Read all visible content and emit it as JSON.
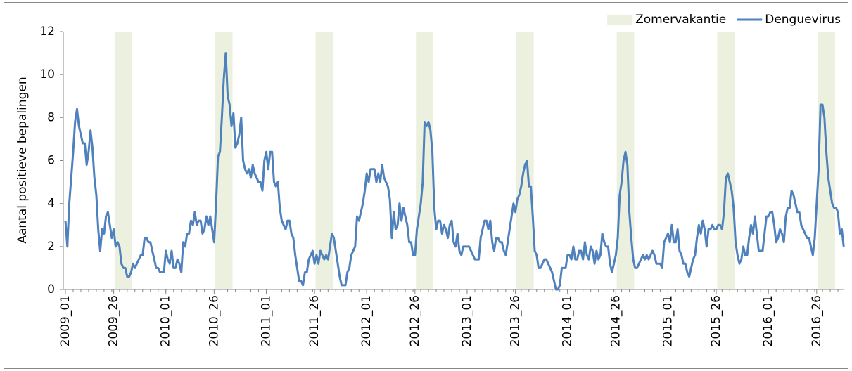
{
  "chart_data": {
    "type": "line",
    "y_label": "Aantal positieve bepalingen",
    "ylim": [
      0,
      12
    ],
    "yticks": [
      0,
      2,
      4,
      6,
      8,
      10,
      12
    ],
    "legend": "top-right",
    "categories": [
      "2009_01",
      null,
      null,
      null,
      null,
      null,
      null,
      null,
      null,
      null,
      null,
      null,
      null,
      null,
      null,
      null,
      null,
      null,
      null,
      null,
      null,
      null,
      null,
      null,
      null,
      "2009_26",
      null,
      null,
      null,
      null,
      null,
      null,
      null,
      null,
      null,
      null,
      null,
      null,
      null,
      null,
      null,
      null,
      null,
      null,
      null,
      null,
      null,
      null,
      null,
      null,
      null,
      null,
      "2010_01",
      null,
      null,
      null,
      null,
      null,
      null,
      null,
      null,
      null,
      null,
      null,
      null,
      null,
      null,
      null,
      null,
      null,
      null,
      null,
      null,
      null,
      null,
      null,
      null,
      "2010_26",
      null,
      null,
      null,
      null,
      null,
      null,
      null,
      null,
      null,
      null,
      null,
      null,
      null,
      null,
      null,
      null,
      null,
      null,
      null,
      null,
      null,
      null,
      null,
      null,
      null,
      null,
      "2011_01",
      null,
      null,
      null,
      null,
      null,
      null,
      null,
      null,
      null,
      null,
      null,
      null,
      null,
      null,
      null,
      null,
      null,
      null,
      null,
      null,
      null,
      null,
      null,
      null,
      "2011_26",
      null,
      null,
      null,
      null,
      null,
      null,
      null,
      null,
      null,
      null,
      null,
      null,
      null,
      null,
      null,
      null,
      null,
      null,
      null,
      null,
      null,
      null,
      null,
      null,
      null,
      null,
      "2012_01",
      null,
      null,
      null,
      null,
      null,
      null,
      null,
      null,
      null,
      null,
      null,
      null,
      null,
      null,
      null,
      null,
      null,
      null,
      null,
      null,
      null,
      null,
      null,
      null,
      "2012_26",
      null,
      null,
      null,
      null,
      null,
      null,
      null,
      null,
      null,
      null,
      null,
      null,
      null,
      null,
      null,
      null,
      null,
      null,
      null,
      null,
      null,
      null,
      null,
      null,
      null,
      null,
      "2013_01",
      null,
      null,
      null,
      null,
      null,
      null,
      null,
      null,
      null,
      null,
      null,
      null,
      null,
      null,
      null,
      null,
      null,
      null,
      null,
      null,
      null,
      null,
      null,
      null,
      "2013_26",
      null,
      null,
      null,
      null,
      null,
      null,
      null,
      null,
      null,
      null,
      null,
      null,
      null,
      null,
      null,
      null,
      null,
      null,
      null,
      null,
      null,
      null,
      null,
      null,
      null,
      null,
      "2014_01",
      null,
      null,
      null,
      null,
      null,
      null,
      null,
      null,
      null,
      null,
      null,
      null,
      null,
      null,
      null,
      null,
      null,
      null,
      null,
      null,
      null,
      null,
      null,
      null,
      "2014_26",
      null,
      null,
      null,
      null,
      null,
      null,
      null,
      null,
      null,
      null,
      null,
      null,
      null,
      null,
      null,
      null,
      null,
      null,
      null,
      null,
      null,
      null,
      null,
      null,
      null,
      null,
      "2015_01",
      null,
      null,
      null,
      null,
      null,
      null,
      null,
      null,
      null,
      null,
      null,
      null,
      null,
      null,
      null,
      null,
      null,
      null,
      null,
      null,
      null,
      null,
      null,
      null,
      "2015_26",
      null,
      null,
      null,
      null,
      null,
      null,
      null,
      null,
      null,
      null,
      null,
      null,
      null,
      null,
      null,
      null,
      null,
      null,
      null,
      null,
      null,
      null,
      null,
      null,
      null,
      null,
      "2016_01",
      null,
      null,
      null,
      null,
      null,
      null,
      null,
      null,
      null,
      null,
      null,
      null,
      null,
      null,
      null,
      null,
      null,
      null,
      null,
      null,
      null,
      null,
      null,
      null,
      "2016_26",
      null,
      null,
      null,
      null,
      null,
      null,
      null,
      null,
      null,
      null,
      null,
      null,
      null,
      null
    ],
    "series": [
      {
        "name": "Zomervakantie",
        "type": "band",
        "color": "#ebf1de",
        "value": 12,
        "ranges": [
          [
            26,
            34
          ],
          [
            78,
            86
          ],
          [
            130,
            138
          ],
          [
            182,
            190
          ],
          [
            234,
            242
          ],
          [
            286,
            294
          ],
          [
            338,
            346
          ],
          [
            390,
            398
          ]
        ]
      },
      {
        "name": "Denguevirus",
        "type": "line",
        "color": "#4f81bd",
        "values": [
          3.2,
          2.0,
          4.0,
          5.2,
          6.4,
          7.8,
          8.4,
          7.6,
          7.2,
          6.8,
          6.8,
          5.8,
          6.4,
          7.4,
          6.6,
          5.2,
          4.4,
          2.8,
          1.8,
          2.8,
          2.6,
          3.4,
          3.6,
          3.0,
          2.4,
          2.8,
          2.0,
          2.2,
          2.0,
          1.2,
          1.0,
          1.0,
          0.6,
          0.6,
          0.8,
          1.2,
          1.0,
          1.2,
          1.4,
          1.6,
          1.6,
          2.4,
          2.4,
          2.2,
          2.2,
          1.8,
          1.4,
          1.0,
          1.0,
          0.8,
          0.8,
          0.8,
          1.8,
          1.4,
          1.2,
          1.8,
          1.0,
          1.0,
          1.4,
          1.2,
          0.8,
          2.2,
          2.0,
          2.6,
          2.6,
          3.2,
          3.0,
          3.6,
          3.0,
          3.2,
          3.2,
          2.6,
          2.8,
          3.4,
          3.0,
          3.4,
          2.8,
          2.2,
          4.0,
          6.2,
          6.4,
          8.0,
          9.8,
          11.0,
          9.0,
          8.6,
          7.6,
          8.2,
          6.6,
          6.8,
          7.2,
          8.0,
          6.0,
          5.6,
          5.4,
          5.6,
          5.2,
          5.8,
          5.4,
          5.2,
          5.0,
          5.0,
          4.6,
          6.0,
          6.4,
          5.6,
          6.4,
          6.4,
          5.0,
          4.8,
          5.0,
          3.8,
          3.2,
          3.0,
          2.8,
          3.2,
          3.2,
          2.6,
          2.4,
          1.6,
          1.0,
          0.4,
          0.4,
          0.2,
          0.8,
          0.8,
          1.4,
          1.6,
          1.8,
          1.2,
          1.6,
          1.2,
          1.8,
          1.6,
          1.4,
          1.6,
          1.4,
          2.0,
          2.6,
          2.4,
          1.8,
          1.2,
          0.6,
          0.2,
          0.2,
          0.2,
          0.8,
          1.0,
          1.6,
          1.8,
          2.0,
          3.4,
          3.2,
          3.6,
          4.0,
          4.6,
          5.4,
          5.0,
          5.6,
          5.6,
          5.6,
          5.0,
          5.4,
          5.0,
          5.8,
          5.2,
          5.0,
          4.8,
          4.2,
          2.4,
          3.6,
          2.8,
          3.0,
          4.0,
          3.2,
          3.8,
          3.4,
          3.0,
          2.2,
          2.2,
          1.6,
          1.6,
          2.8,
          3.4,
          4.0,
          5.0,
          7.8,
          7.6,
          7.8,
          7.4,
          6.4,
          3.8,
          2.8,
          3.2,
          3.2,
          2.6,
          3.0,
          2.8,
          2.4,
          3.0,
          3.2,
          2.2,
          2.0,
          2.6,
          1.8,
          1.6,
          2.0,
          2.0,
          2.0,
          2.0,
          1.8,
          1.6,
          1.4,
          1.4,
          1.4,
          2.4,
          2.8,
          3.2,
          3.2,
          2.8,
          3.2,
          2.2,
          1.8,
          2.4,
          2.4,
          2.2,
          2.2,
          1.8,
          1.6,
          2.2,
          2.8,
          3.4,
          4.0,
          3.6,
          4.2,
          4.4,
          4.8,
          5.4,
          5.8,
          6.0,
          4.8,
          4.8,
          3.4,
          1.8,
          1.6,
          1.0,
          1.0,
          1.2,
          1.4,
          1.4,
          1.2,
          1.0,
          0.8,
          0.4,
          0.0,
          0.0,
          0.2,
          1.0,
          1.0,
          1.0,
          1.6,
          1.6,
          1.4,
          2.0,
          1.4,
          1.4,
          1.8,
          1.8,
          1.4,
          2.2,
          1.6,
          1.4,
          2.0,
          1.8,
          1.2,
          1.8,
          1.4,
          1.6,
          2.6,
          2.2,
          2.0,
          2.0,
          1.2,
          0.8,
          1.2,
          1.6,
          2.4,
          4.4,
          5.0,
          6.0,
          6.4,
          5.8,
          3.6,
          2.4,
          1.4,
          1.0,
          1.0,
          1.2,
          1.4,
          1.6,
          1.4,
          1.6,
          1.4,
          1.6,
          1.8,
          1.6,
          1.2,
          1.2,
          1.2,
          1.0,
          2.2,
          2.4,
          2.6,
          2.2,
          3.0,
          2.2,
          2.2,
          2.8,
          1.8,
          1.6,
          1.2,
          1.2,
          0.8,
          0.6,
          1.0,
          1.4,
          1.6,
          2.4,
          3.0,
          2.6,
          3.2,
          2.8,
          2.0,
          2.8,
          2.8,
          3.0,
          2.8,
          2.8,
          3.0,
          3.0,
          2.8,
          3.6,
          5.2,
          5.4,
          5.0,
          4.6,
          3.8,
          2.2,
          1.6,
          1.2,
          1.4,
          2.0,
          1.6,
          1.6,
          2.4,
          3.0,
          2.6,
          3.4,
          2.6,
          1.8,
          1.8,
          1.8,
          2.6,
          3.4,
          3.4,
          3.6,
          3.6,
          3.0,
          2.2,
          2.4,
          2.8,
          2.6,
          2.2,
          3.4,
          3.8,
          3.8,
          4.6,
          4.4,
          4.0,
          3.6,
          3.6,
          3.0,
          2.8,
          2.6,
          2.4,
          2.4,
          2.0,
          1.6,
          2.4,
          4.0,
          5.6,
          8.6,
          8.6,
          8.0,
          6.4,
          5.2,
          4.6,
          4.0,
          3.8,
          3.8,
          3.6,
          2.6,
          2.8,
          2.0
        ]
      }
    ]
  }
}
